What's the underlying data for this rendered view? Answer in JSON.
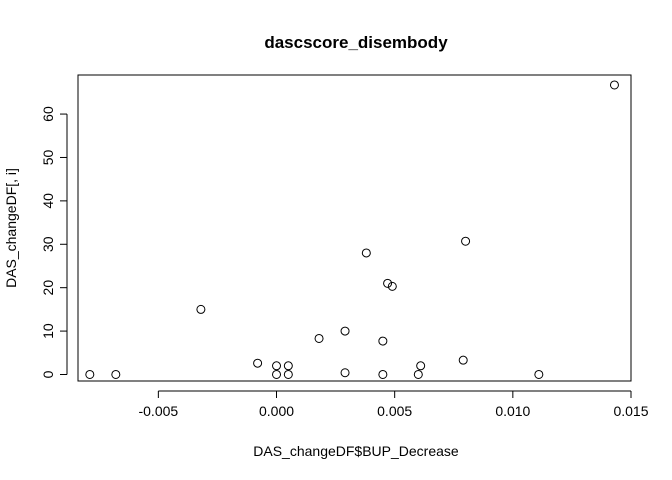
{
  "chart_data": {
    "type": "scatter",
    "title": "dascscore_disembody",
    "xlabel": "DAS_changeDF$BUP_Decrease",
    "ylabel": "DAS_changeDF[, i]",
    "xlim": [
      -0.0084,
      0.015
    ],
    "ylim": [
      -1.5,
      69
    ],
    "x_ticks": [
      -0.005,
      0.0,
      0.005,
      0.01,
      0.015
    ],
    "x_tick_labels": [
      "-0.005",
      "0.000",
      "0.005",
      "0.010",
      "0.015"
    ],
    "y_ticks": [
      0,
      10,
      20,
      30,
      40,
      50,
      60
    ],
    "y_tick_labels": [
      "0",
      "10",
      "20",
      "30",
      "40",
      "50",
      "60"
    ],
    "grid": false,
    "legend": "none",
    "points": [
      {
        "x": -0.0079,
        "y": 0.0
      },
      {
        "x": -0.0068,
        "y": 0.0
      },
      {
        "x": -0.0032,
        "y": 15.0
      },
      {
        "x": -0.0008,
        "y": 2.6
      },
      {
        "x": 0.0,
        "y": 2.0
      },
      {
        "x": 0.0,
        "y": 0.0
      },
      {
        "x": 0.0005,
        "y": 2.0
      },
      {
        "x": 0.0005,
        "y": 0.0
      },
      {
        "x": 0.0018,
        "y": 8.3
      },
      {
        "x": 0.0029,
        "y": 10.0
      },
      {
        "x": 0.0029,
        "y": 0.4
      },
      {
        "x": 0.0038,
        "y": 28.0
      },
      {
        "x": 0.0045,
        "y": 7.7
      },
      {
        "x": 0.0045,
        "y": 0.0
      },
      {
        "x": 0.0047,
        "y": 21.0
      },
      {
        "x": 0.0049,
        "y": 20.3
      },
      {
        "x": 0.006,
        "y": 0.0
      },
      {
        "x": 0.0061,
        "y": 2.0
      },
      {
        "x": 0.0079,
        "y": 3.3
      },
      {
        "x": 0.008,
        "y": 30.7
      },
      {
        "x": 0.0111,
        "y": 0.0
      },
      {
        "x": 0.0143,
        "y": 66.7
      }
    ]
  }
}
